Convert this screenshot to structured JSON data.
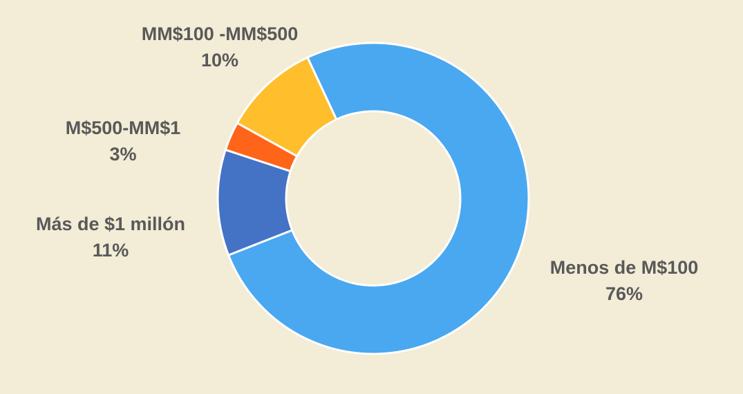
{
  "chart_data": {
    "type": "pie",
    "variant": "donut",
    "title": "",
    "series": [
      {
        "name": "Menos de M$100",
        "value": 76,
        "value_label": "76%",
        "color": "#4aa8f0"
      },
      {
        "name": "Más de $1 millón",
        "value": 11,
        "value_label": "11%",
        "color": "#4472c4"
      },
      {
        "name": "M$500-MM$1",
        "value": 3,
        "value_label": "3%",
        "color": "#ff6519"
      },
      {
        "name": "MM$100 -MM$500",
        "value": 10,
        "value_label": "10%",
        "color": "#ffbe2c"
      }
    ],
    "legend": "none",
    "grid": false
  }
}
